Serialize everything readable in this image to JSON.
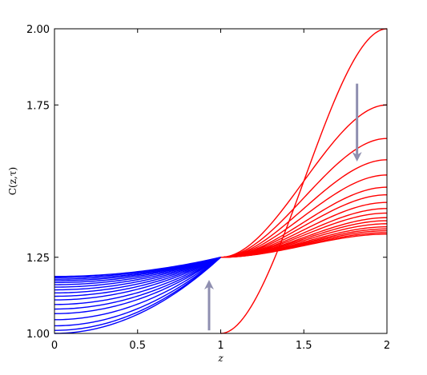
{
  "chart_data": {
    "type": "line",
    "xlabel": "z",
    "ylabel": "C(z,τ)",
    "xlim": [
      0,
      2
    ],
    "ylim": [
      1.0,
      2.0
    ],
    "x_ticks": [
      0,
      0.5,
      1,
      1.5,
      2
    ],
    "x_tick_labels": [
      "0",
      "0.5",
      "1",
      "1.5",
      "2"
    ],
    "y_ticks": [
      1.0,
      1.25,
      1.75,
      2.0
    ],
    "y_tick_labels": [
      "1.00",
      "1.25",
      "1.75",
      "2.00"
    ],
    "grid": false,
    "colors": {
      "left_family": "#0000ff",
      "right_family": "#ff0000",
      "arrow": "#8f8fb0",
      "axes": "#000000"
    },
    "left_family": {
      "x_range": [
        0,
        1
      ],
      "value_at_z0": [
        1.0,
        1.01,
        1.025,
        1.045,
        1.065,
        1.08,
        1.095,
        1.11,
        1.122,
        1.133,
        1.143,
        1.152,
        1.16,
        1.167,
        1.173,
        1.178,
        1.183,
        1.187
      ],
      "value_at_z1": 1.25
    },
    "right_family": {
      "x_range": [
        1,
        2
      ],
      "value_at_z1": [
        1.0,
        1.25,
        1.25,
        1.25,
        1.25,
        1.25,
        1.25,
        1.25,
        1.25,
        1.25,
        1.25,
        1.25,
        1.25,
        1.25,
        1.25,
        1.25,
        1.25,
        1.25
      ],
      "value_at_z2": [
        2.0,
        1.75,
        1.64,
        1.57,
        1.52,
        1.48,
        1.455,
        1.43,
        1.41,
        1.395,
        1.38,
        1.37,
        1.36,
        1.35,
        1.343,
        1.337,
        1.331,
        1.326
      ]
    },
    "arrows": [
      {
        "name": "arrow-up",
        "from": [
          0.93,
          1.01
        ],
        "to": [
          0.93,
          1.16
        ]
      },
      {
        "name": "arrow-down",
        "from": [
          1.82,
          1.82
        ],
        "to": [
          1.82,
          1.58
        ]
      }
    ]
  }
}
